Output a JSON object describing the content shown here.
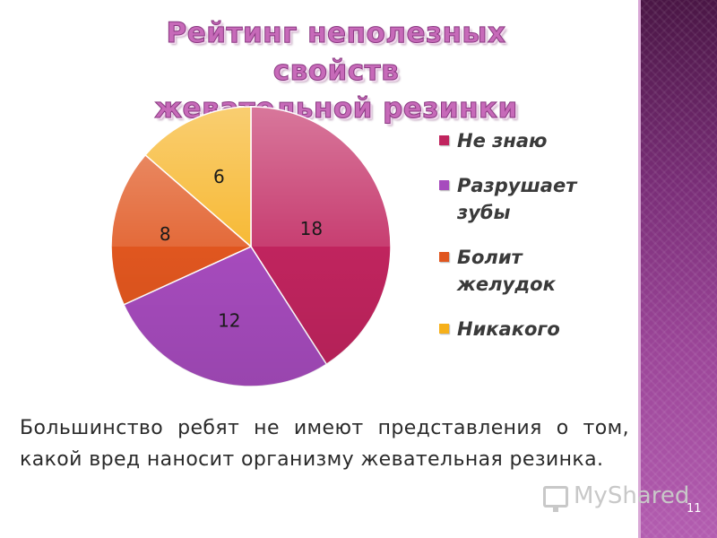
{
  "slide": {
    "title_line1": "Рейтинг неполезных свойств",
    "title_line2": "жевательной резинки",
    "caption": "Большинство ребят не имеют представления о том, какой вред наносит организму жевательная резинка.",
    "watermark": "MyShared",
    "slide_number": "11",
    "colors": {
      "title": "#c76ab9",
      "band": "#7a2e78"
    }
  },
  "chart_data": {
    "type": "pie",
    "title": "",
    "categories": [
      "Не знаю",
      "Разрушает зубы",
      "Болит желудок",
      "Никакого"
    ],
    "values": [
      18,
      12,
      8,
      6
    ],
    "colors": [
      "#c0245e",
      "#a64bbd",
      "#e0561f",
      "#f6b01a"
    ],
    "data_labels": [
      "18",
      "12",
      "8",
      "6"
    ],
    "legend": {
      "placement": "right",
      "entries": [
        {
          "line1": "Не знаю",
          "line2": ""
        },
        {
          "line1": "Разрушает",
          "line2": "зубы"
        },
        {
          "line1": "Болит",
          "line2": "желудок"
        },
        {
          "line1": "Никакого",
          "line2": ""
        }
      ]
    }
  }
}
